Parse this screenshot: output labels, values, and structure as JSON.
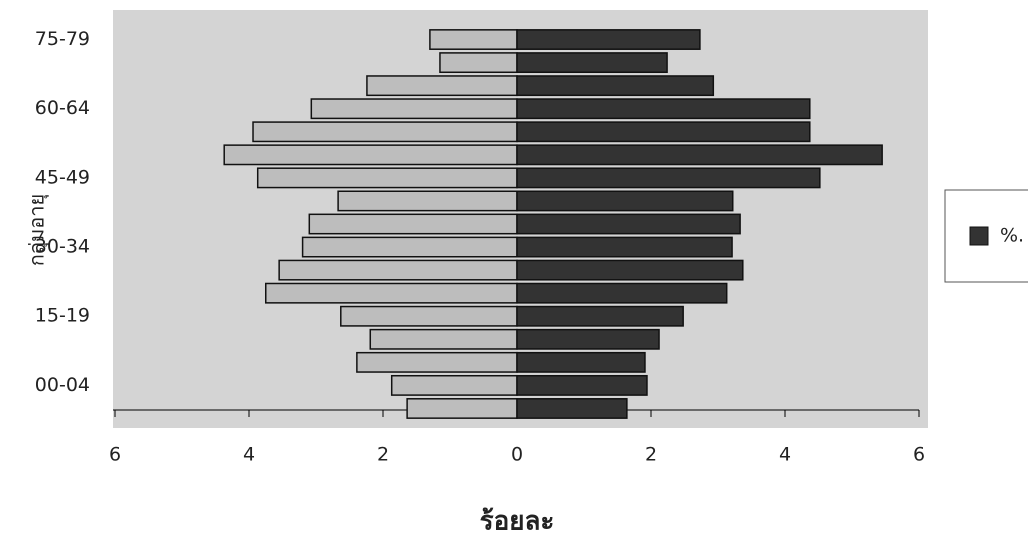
{
  "chart_data": {
    "type": "bar",
    "orientation": "horizontal",
    "stacked": false,
    "x_label": "ร้อยละ",
    "y_label": "กลุ่มอายุ",
    "categories": [
      null,
      "00-04",
      null,
      null,
      "15-19",
      null,
      null,
      "30-34",
      null,
      null,
      "45-49",
      null,
      null,
      "60-64",
      null,
      null,
      "75-79"
    ],
    "series": [
      {
        "color": "#bdbdbd",
        "values": [
          -1.64,
          -1.87,
          -2.39,
          -2.19,
          -2.63,
          -3.75,
          -3.55,
          -3.2,
          -3.1,
          -2.67,
          -3.87,
          -4.37,
          -3.94,
          -3.07,
          -2.24,
          -1.15,
          -1.3
        ]
      },
      {
        "name": "%.",
        "color": "#333333",
        "values": [
          1.64,
          1.94,
          1.91,
          2.12,
          2.48,
          3.13,
          3.37,
          3.21,
          3.33,
          3.22,
          4.52,
          5.45,
          4.37,
          4.37,
          2.93,
          2.24,
          2.73
        ]
      }
    ],
    "xlim": [
      -6,
      6
    ],
    "xticks": [
      {
        "value": -6,
        "label": "6"
      },
      {
        "value": -4,
        "label": "4"
      },
      {
        "value": -2,
        "label": "2"
      },
      0,
      2,
      4,
      6
    ],
    "legend": "right"
  }
}
